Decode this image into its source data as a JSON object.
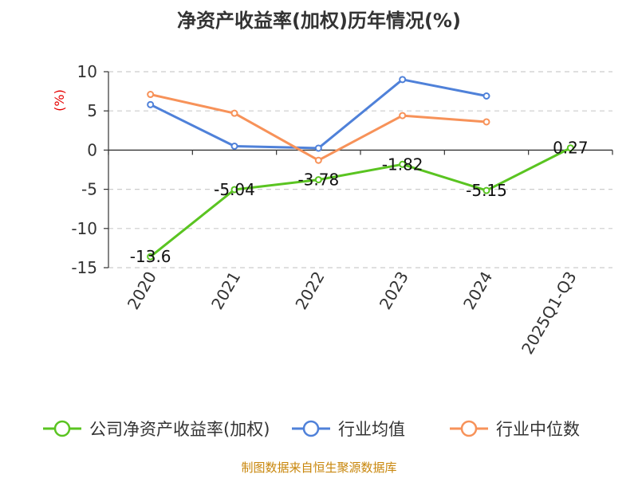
{
  "chart_data": {
    "type": "line",
    "title": "净资产收益率(加权)历年情况(%)",
    "ylabel": "(%)",
    "categories": [
      "2020",
      "2021",
      "2022",
      "2023",
      "2024",
      "2025Q1-Q3"
    ],
    "ylim": [
      -15,
      10
    ],
    "yticks": [
      10,
      5,
      0,
      -5,
      -10,
      -15
    ],
    "grid": true,
    "legend_position": "bottom",
    "series": [
      {
        "name": "公司净资产收益率(加权)",
        "color": "#5ac421",
        "values": [
          -13.6,
          -5.04,
          -3.78,
          -1.82,
          -5.15,
          0.27
        ],
        "labels": [
          "-13.6",
          "-5.04",
          "-3.78",
          "-1.82",
          "-5.15",
          "0.27"
        ]
      },
      {
        "name": "行业均值",
        "color": "#4f81d9",
        "values": [
          5.8,
          0.5,
          0.25,
          9.0,
          6.9,
          null
        ]
      },
      {
        "name": "行业中位数",
        "color": "#f79259",
        "values": [
          7.1,
          4.7,
          -1.3,
          4.4,
          3.6,
          null
        ]
      }
    ]
  },
  "source": "制图数据来自恒生聚源数据库"
}
